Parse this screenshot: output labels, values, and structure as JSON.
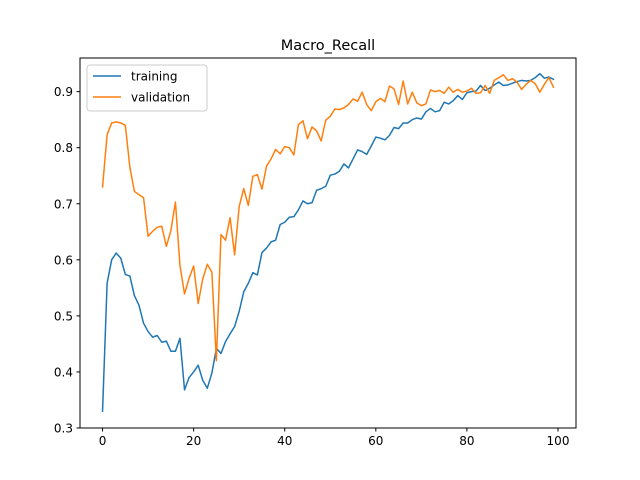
{
  "chart_data": {
    "type": "line",
    "title": "Macro_Recall",
    "xlabel": "",
    "ylabel": "",
    "xlim": [
      -4.95,
      103.95
    ],
    "ylim": [
      0.3,
      0.96
    ],
    "xticks": [
      0,
      20,
      40,
      60,
      80,
      100
    ],
    "yticks": [
      0.3,
      0.4,
      0.5,
      0.6,
      0.7,
      0.8,
      0.9
    ],
    "xtick_labels": [
      "0",
      "20",
      "40",
      "60",
      "80",
      "100"
    ],
    "ytick_labels": [
      "0.3",
      "0.4",
      "0.5",
      "0.6",
      "0.7",
      "0.8",
      "0.9"
    ],
    "grid": false,
    "legend_position": "upper left",
    "series": [
      {
        "name": "training",
        "color": "#1f77b4",
        "x": [
          0,
          1,
          2,
          3,
          4,
          5,
          6,
          7,
          8,
          9,
          10,
          11,
          12,
          13,
          14,
          15,
          16,
          17,
          18,
          19,
          20,
          21,
          22,
          23,
          24,
          25,
          26,
          27,
          28,
          29,
          30,
          31,
          32,
          33,
          34,
          35,
          36,
          37,
          38,
          39,
          40,
          41,
          42,
          43,
          44,
          45,
          46,
          47,
          48,
          49,
          50,
          51,
          52,
          53,
          54,
          55,
          56,
          57,
          58,
          59,
          60,
          61,
          62,
          63,
          64,
          65,
          66,
          67,
          68,
          69,
          70,
          71,
          72,
          73,
          74,
          75,
          76,
          77,
          78,
          79,
          80,
          81,
          82,
          83,
          84,
          85,
          86,
          87,
          88,
          89,
          90,
          91,
          92,
          93,
          94,
          95,
          96,
          97,
          98,
          99
        ],
        "y": [
          0.33,
          0.558,
          0.6,
          0.612,
          0.603,
          0.574,
          0.571,
          0.536,
          0.519,
          0.487,
          0.472,
          0.462,
          0.465,
          0.453,
          0.455,
          0.437,
          0.437,
          0.46,
          0.368,
          0.39,
          0.4,
          0.412,
          0.385,
          0.371,
          0.398,
          0.442,
          0.433,
          0.454,
          0.468,
          0.481,
          0.508,
          0.543,
          0.558,
          0.577,
          0.573,
          0.613,
          0.621,
          0.632,
          0.635,
          0.663,
          0.667,
          0.676,
          0.677,
          0.689,
          0.705,
          0.7,
          0.702,
          0.724,
          0.727,
          0.731,
          0.751,
          0.753,
          0.758,
          0.771,
          0.764,
          0.78,
          0.796,
          0.793,
          0.788,
          0.803,
          0.819,
          0.817,
          0.814,
          0.822,
          0.836,
          0.834,
          0.844,
          0.844,
          0.85,
          0.853,
          0.851,
          0.864,
          0.87,
          0.864,
          0.866,
          0.881,
          0.878,
          0.884,
          0.893,
          0.886,
          0.898,
          0.9,
          0.901,
          0.911,
          0.902,
          0.906,
          0.912,
          0.917,
          0.911,
          0.912,
          0.915,
          0.918,
          0.92,
          0.919,
          0.92,
          0.925,
          0.932,
          0.924,
          0.926,
          0.922
        ]
      },
      {
        "name": "validation",
        "color": "#ff7f0e",
        "x": [
          0,
          1,
          2,
          3,
          4,
          5,
          6,
          7,
          8,
          9,
          10,
          11,
          12,
          13,
          14,
          15,
          16,
          17,
          18,
          19,
          20,
          21,
          22,
          23,
          24,
          25,
          26,
          27,
          28,
          29,
          30,
          31,
          32,
          33,
          34,
          35,
          36,
          37,
          38,
          39,
          40,
          41,
          42,
          43,
          44,
          45,
          46,
          47,
          48,
          49,
          50,
          51,
          52,
          53,
          54,
          55,
          56,
          57,
          58,
          59,
          60,
          61,
          62,
          63,
          64,
          65,
          66,
          67,
          68,
          69,
          70,
          71,
          72,
          73,
          74,
          75,
          76,
          77,
          78,
          79,
          80,
          81,
          82,
          83,
          84,
          85,
          86,
          87,
          88,
          89,
          90,
          91,
          92,
          93,
          94,
          95,
          96,
          97,
          98,
          99
        ],
        "y": [
          0.73,
          0.823,
          0.844,
          0.846,
          0.844,
          0.84,
          0.765,
          0.722,
          0.716,
          0.711,
          0.642,
          0.651,
          0.658,
          0.66,
          0.624,
          0.652,
          0.703,
          0.59,
          0.539,
          0.567,
          0.589,
          0.522,
          0.566,
          0.592,
          0.578,
          0.42,
          0.645,
          0.635,
          0.675,
          0.609,
          0.695,
          0.727,
          0.697,
          0.749,
          0.752,
          0.726,
          0.767,
          0.78,
          0.797,
          0.789,
          0.802,
          0.8,
          0.787,
          0.841,
          0.848,
          0.816,
          0.837,
          0.83,
          0.812,
          0.849,
          0.856,
          0.869,
          0.868,
          0.871,
          0.877,
          0.887,
          0.883,
          0.899,
          0.877,
          0.866,
          0.882,
          0.888,
          0.882,
          0.91,
          0.905,
          0.877,
          0.919,
          0.878,
          0.899,
          0.88,
          0.875,
          0.878,
          0.903,
          0.9,
          0.902,
          0.897,
          0.908,
          0.899,
          0.904,
          0.899,
          0.901,
          0.906,
          0.897,
          0.898,
          0.911,
          0.897,
          0.92,
          0.925,
          0.93,
          0.92,
          0.923,
          0.917,
          0.904,
          0.913,
          0.92,
          0.914,
          0.899,
          0.913,
          0.925,
          0.908
        ]
      }
    ]
  }
}
